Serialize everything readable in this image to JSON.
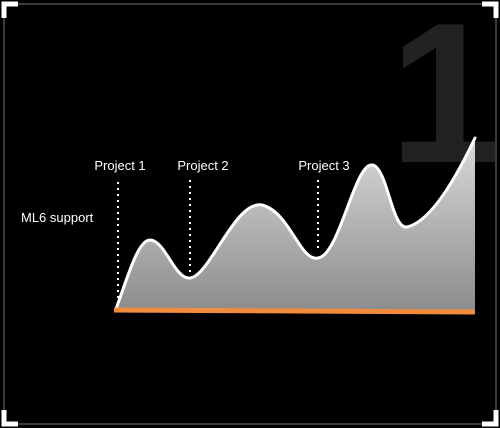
{
  "diagram": {
    "big_numeral": "1",
    "axis_label": "ML6 support",
    "markers": [
      {
        "label": "Project 1"
      },
      {
        "label": "Project 2"
      },
      {
        "label": "Project 3"
      }
    ],
    "colors": {
      "background": "#000000",
      "frame": "#3a3a3a",
      "corner": "#ffffff",
      "curve": "#ffffff",
      "fill_top": "#d9d9d9",
      "fill_bottom": "#8c8c8c",
      "baseline": "#f28c3c",
      "numeral": "#222222"
    }
  }
}
